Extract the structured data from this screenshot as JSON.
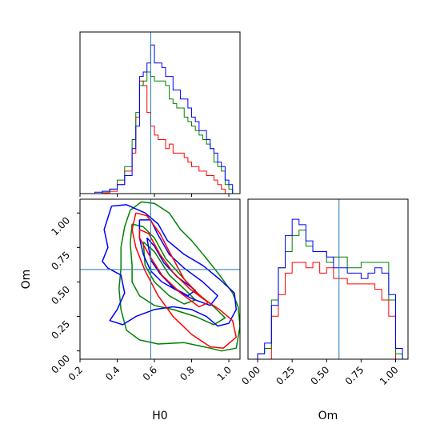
{
  "chart_data": {
    "type": "corner",
    "colors": {
      "series_red": "#ff0000",
      "series_green": "#008000",
      "series_blue": "#0000ff",
      "truth": "#1f77b4"
    },
    "truth": {
      "H0": 0.58,
      "Om": 0.59
    },
    "axes": {
      "h0_xlim": [
        0.2,
        1.06
      ],
      "om_xlim": [
        -0.07,
        1.09
      ],
      "om_ylim": [
        -0.06,
        1.1
      ],
      "h0_ticks": [
        "0.2",
        "0.4",
        "0.6",
        "0.8",
        "1.0"
      ],
      "om_ticks": [
        "0.00",
        "0.25",
        "0.50",
        "0.75",
        "1.00"
      ]
    },
    "labels": {
      "h0_xlabel": "H0",
      "om_xlabel": "Om",
      "om_ylabel": "Om"
    },
    "hist_h0": {
      "bin_edges": [
        0.2,
        0.24,
        0.28,
        0.32,
        0.36,
        0.4,
        0.44,
        0.48,
        0.5,
        0.52,
        0.54,
        0.56,
        0.58,
        0.6,
        0.62,
        0.64,
        0.66,
        0.68,
        0.7,
        0.72,
        0.74,
        0.76,
        0.78,
        0.8,
        0.82,
        0.84,
        0.86,
        0.88,
        0.9,
        0.92,
        0.94,
        0.96,
        0.98,
        1.0,
        1.02,
        1.04,
        1.06
      ],
      "series": [
        {
          "color": "red",
          "values": [
            0,
            0,
            0,
            0.2,
            0.5,
            2,
            5,
            9,
            17,
            25,
            24,
            18,
            15,
            13,
            12,
            12,
            10,
            11,
            9,
            9,
            9,
            8,
            7,
            6,
            6,
            5,
            5,
            4,
            4,
            3,
            2,
            1,
            0,
            0,
            0,
            0
          ]
        },
        {
          "color": "green",
          "values": [
            0,
            0,
            0,
            0.5,
            1,
            3,
            6,
            12,
            18,
            24,
            25,
            27,
            26,
            25,
            25,
            25,
            24,
            21,
            20,
            19,
            19,
            17,
            16,
            15,
            14,
            13,
            12,
            11,
            10,
            7,
            6,
            5,
            2,
            1,
            0,
            0
          ]
        },
        {
          "color": "blue",
          "values": [
            0,
            0,
            0.3,
            0.5,
            1,
            2,
            4,
            10,
            15,
            26,
            27,
            29,
            33,
            29,
            29,
            28,
            26,
            26,
            23,
            23,
            21,
            21,
            19,
            17,
            16,
            14,
            14,
            12,
            10,
            9,
            7,
            6,
            3,
            2,
            0,
            0
          ]
        }
      ]
    },
    "hist_om": {
      "bin_edges": [
        -0.05,
        0.0,
        0.05,
        0.1,
        0.15,
        0.2,
        0.25,
        0.3,
        0.35,
        0.4,
        0.45,
        0.5,
        0.55,
        0.6,
        0.65,
        0.7,
        0.75,
        0.8,
        0.85,
        0.9,
        0.95,
        1.0,
        1.05
      ],
      "series": [
        {
          "color": "red",
          "values": [
            0,
            0,
            0,
            8,
            12,
            16,
            18,
            18,
            17,
            18,
            16,
            17,
            15,
            15,
            14,
            14,
            14,
            14,
            13,
            11,
            8,
            0
          ]
        },
        {
          "color": "green",
          "values": [
            0,
            1,
            2,
            11,
            17,
            20,
            23,
            24,
            21,
            20,
            20,
            18,
            19,
            19,
            17,
            17,
            18,
            18,
            18,
            18,
            11,
            1
          ]
        },
        {
          "color": "blue",
          "values": [
            0,
            1,
            3,
            10,
            17,
            23,
            26,
            25,
            22,
            20,
            20,
            19,
            17,
            17,
            16,
            16,
            15,
            16,
            17,
            16,
            12,
            2
          ]
        }
      ]
    },
    "contours": {
      "red": [
        [
          [
            0.5,
            1.0
          ],
          [
            0.56,
            0.98
          ],
          [
            0.63,
            0.85
          ],
          [
            0.68,
            0.72
          ],
          [
            0.76,
            0.52
          ],
          [
            0.86,
            0.38
          ],
          [
            0.95,
            0.3
          ],
          [
            1.02,
            0.22
          ],
          [
            1.04,
            0.1
          ],
          [
            0.97,
            0.02
          ],
          [
            0.9,
            0.03
          ],
          [
            0.8,
            0.12
          ],
          [
            0.7,
            0.25
          ],
          [
            0.62,
            0.4
          ],
          [
            0.55,
            0.58
          ],
          [
            0.5,
            0.75
          ],
          [
            0.48,
            0.88
          ],
          [
            0.5,
            1.0
          ]
        ],
        [
          [
            0.52,
            0.88
          ],
          [
            0.57,
            0.85
          ],
          [
            0.63,
            0.7
          ],
          [
            0.7,
            0.57
          ],
          [
            0.79,
            0.45
          ],
          [
            0.89,
            0.35
          ],
          [
            0.84,
            0.32
          ],
          [
            0.74,
            0.42
          ],
          [
            0.64,
            0.55
          ],
          [
            0.57,
            0.7
          ],
          [
            0.52,
            0.82
          ],
          [
            0.52,
            0.88
          ]
        ]
      ],
      "green": [
        [
          [
            0.53,
            1.08
          ],
          [
            0.6,
            1.07
          ],
          [
            0.68,
            1.0
          ],
          [
            0.74,
            0.88
          ],
          [
            0.8,
            0.8
          ],
          [
            0.88,
            0.67
          ],
          [
            0.95,
            0.55
          ],
          [
            1.02,
            0.42
          ],
          [
            1.05,
            0.32
          ],
          [
            1.06,
            0.18
          ],
          [
            1.04,
            0.02
          ],
          [
            0.96,
            0.0
          ],
          [
            0.9,
            0.02
          ],
          [
            0.76,
            0.06
          ],
          [
            0.62,
            0.05
          ],
          [
            0.52,
            0.08
          ],
          [
            0.45,
            0.15
          ],
          [
            0.42,
            0.3
          ],
          [
            0.41,
            0.45
          ],
          [
            0.42,
            0.6
          ],
          [
            0.42,
            0.75
          ],
          [
            0.44,
            0.9
          ],
          [
            0.47,
            1.02
          ],
          [
            0.53,
            1.08
          ]
        ],
        [
          [
            0.48,
            0.92
          ],
          [
            0.54,
            0.9
          ],
          [
            0.6,
            0.82
          ],
          [
            0.66,
            0.67
          ],
          [
            0.74,
            0.55
          ],
          [
            0.82,
            0.43
          ],
          [
            0.92,
            0.32
          ],
          [
            0.98,
            0.24
          ],
          [
            0.92,
            0.19
          ],
          [
            0.82,
            0.25
          ],
          [
            0.7,
            0.3
          ],
          [
            0.6,
            0.33
          ],
          [
            0.52,
            0.4
          ],
          [
            0.48,
            0.5
          ],
          [
            0.48,
            0.62
          ],
          [
            0.47,
            0.78
          ],
          [
            0.48,
            0.92
          ]
        ],
        [
          [
            0.54,
            0.79
          ],
          [
            0.6,
            0.72
          ],
          [
            0.68,
            0.55
          ],
          [
            0.76,
            0.45
          ],
          [
            0.82,
            0.37
          ],
          [
            0.76,
            0.34
          ],
          [
            0.68,
            0.4
          ],
          [
            0.6,
            0.5
          ],
          [
            0.55,
            0.62
          ],
          [
            0.54,
            0.79
          ]
        ]
      ],
      "blue": [
        [
          [
            0.37,
            1.05
          ],
          [
            0.45,
            1.06
          ],
          [
            0.55,
            1.0
          ],
          [
            0.62,
            0.92
          ],
          [
            0.67,
            0.8
          ],
          [
            0.76,
            0.7
          ],
          [
            0.86,
            0.62
          ],
          [
            0.95,
            0.52
          ],
          [
            1.03,
            0.42
          ],
          [
            1.04,
            0.3
          ],
          [
            1.0,
            0.2
          ],
          [
            0.94,
            0.18
          ],
          [
            0.88,
            0.25
          ],
          [
            0.8,
            0.3
          ],
          [
            0.7,
            0.32
          ],
          [
            0.6,
            0.3
          ],
          [
            0.5,
            0.25
          ],
          [
            0.43,
            0.19
          ],
          [
            0.36,
            0.22
          ],
          [
            0.4,
            0.3
          ],
          [
            0.44,
            0.42
          ],
          [
            0.42,
            0.55
          ],
          [
            0.35,
            0.6
          ],
          [
            0.32,
            0.65
          ],
          [
            0.35,
            0.75
          ],
          [
            0.33,
            0.88
          ],
          [
            0.37,
            1.05
          ]
        ],
        [
          [
            0.52,
            0.95
          ],
          [
            0.58,
            0.95
          ],
          [
            0.62,
            0.84
          ],
          [
            0.68,
            0.7
          ],
          [
            0.76,
            0.6
          ],
          [
            0.86,
            0.5
          ],
          [
            0.94,
            0.4
          ],
          [
            0.9,
            0.33
          ],
          [
            0.8,
            0.38
          ],
          [
            0.72,
            0.44
          ],
          [
            0.64,
            0.5
          ],
          [
            0.58,
            0.58
          ],
          [
            0.54,
            0.7
          ],
          [
            0.52,
            0.82
          ],
          [
            0.52,
            0.95
          ]
        ],
        [
          [
            0.56,
            0.82
          ],
          [
            0.6,
            0.76
          ],
          [
            0.65,
            0.64
          ],
          [
            0.72,
            0.54
          ],
          [
            0.82,
            0.44
          ],
          [
            0.78,
            0.4
          ],
          [
            0.7,
            0.46
          ],
          [
            0.63,
            0.56
          ],
          [
            0.58,
            0.66
          ],
          [
            0.56,
            0.82
          ]
        ]
      ]
    }
  }
}
